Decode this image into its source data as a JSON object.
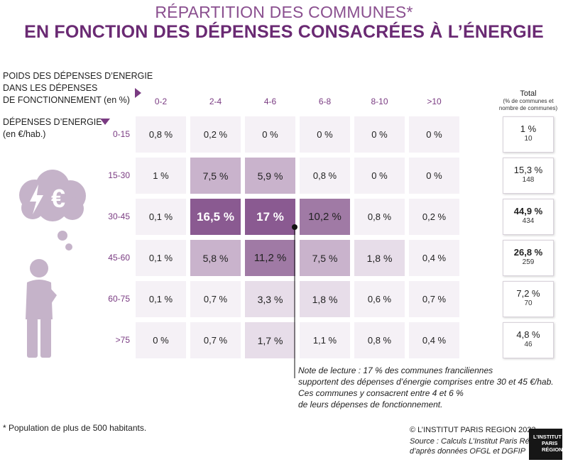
{
  "header": {
    "title_line1": "RÉPARTITION DES COMMUNES*",
    "title_line2": "EN FONCTION DES DÉPENSES CONSACRÉES À L’ÉNERGIE"
  },
  "axes": {
    "col_title_line1": "POIDS DES DÉPENSES D’ENERGIE",
    "col_title_line2": "DANS LES DÉPENSES",
    "col_title_line3": "DE FONCTIONNEMENT (en %)",
    "row_title_line1": "DÉPENSES D’ENERGIE",
    "row_title_line2": "(en €/hab.)"
  },
  "chart_data": {
    "type": "heatmap",
    "title": "RÉPARTITION DES COMMUNES* EN FONCTION DES DÉPENSES CONSACRÉES À L’ÉNERGIE",
    "xlabel": "POIDS DES DÉPENSES D’ENERGIE DANS LES DÉPENSES DE FONCTIONNEMENT (en %)",
    "ylabel": "DÉPENSES D’ENERGIE (en €/hab.)",
    "columns": [
      "0-2",
      "2-4",
      "4-6",
      "6-8",
      "8-10",
      ">10"
    ],
    "rows": [
      "0-15",
      "15-30",
      "30-45",
      "45-60",
      "60-75",
      ">75"
    ],
    "values": [
      [
        0.8,
        0.2,
        0,
        0,
        0,
        0
      ],
      [
        1,
        7.5,
        5.9,
        0.8,
        0,
        0
      ],
      [
        0.1,
        16.5,
        17,
        10.2,
        0.8,
        0.2
      ],
      [
        0.1,
        5.8,
        11.2,
        7.5,
        1.8,
        0.4
      ],
      [
        0.1,
        0.7,
        3.3,
        1.8,
        0.6,
        0.7
      ],
      [
        0,
        0.7,
        1.7,
        1.1,
        0.8,
        0.4
      ]
    ],
    "labels": [
      [
        "0,8 %",
        "0,2 %",
        "0 %",
        "0 %",
        "0 %",
        "0 %"
      ],
      [
        "1 %",
        "7,5 %",
        "5,9 %",
        "0,8 %",
        "0 %",
        "0 %"
      ],
      [
        "0,1 %",
        "16,5 %",
        "17 %",
        "10,2 %",
        "0,8 %",
        "0,2 %"
      ],
      [
        "0,1 %",
        "5,8 %",
        "11,2 %",
        "7,5 %",
        "1,8 %",
        "0,4 %"
      ],
      [
        "0,1 %",
        "0,7 %",
        "3,3 %",
        "1,8 %",
        "0,6 %",
        "0,7 %"
      ],
      [
        "0 %",
        "0,7 %",
        "1,7 %",
        "1,1 %",
        "0,8 %",
        "0,4 %"
      ]
    ],
    "totals": {
      "header": "Total",
      "subheader_line1": "(% de communes et",
      "subheader_line2": "nombre de communes)",
      "percent_labels": [
        "1 %",
        "15,3 %",
        "44,9 %",
        "26,8 %",
        "7,2 %",
        "4,8 %"
      ],
      "percent_values": [
        1,
        15.3,
        44.9,
        26.8,
        7.2,
        4.8
      ],
      "counts": [
        10,
        148,
        434,
        259,
        70,
        46
      ],
      "bold": [
        false,
        false,
        true,
        true,
        false,
        false
      ]
    },
    "colors": {
      "empty": "#f5f1f6",
      "low": "#e7dde9",
      "mid": "#c9b3cc",
      "high": "#a07aa5",
      "top": "#8a5a91"
    }
  },
  "note": {
    "line1": "Note de lecture : 17 % des communes franciliennes",
    "line2": "supportent des dépenses d’énergie comprises entre 30 et 45 €/hab.",
    "line3": "Ces communes y consacrent entre 4 et 6 %",
    "line4": "de leurs dépenses de fonctionnement."
  },
  "footer": {
    "footnote": "* Population de plus de 500 habitants.",
    "copyright": "© L’INSTITUT PARIS REGION 2023",
    "source_line1": "Source : Calculs L’Institut Paris Région",
    "source_line2": "d’après données OFGL et DGFIP",
    "logo_line1": "L’INSTITUT",
    "logo_line2": "PARIS",
    "logo_line3": "RÉGION"
  },
  "illustration": {
    "icon": "person-thinking-about-energy-cost-icon",
    "bubble_glyph": "€"
  }
}
